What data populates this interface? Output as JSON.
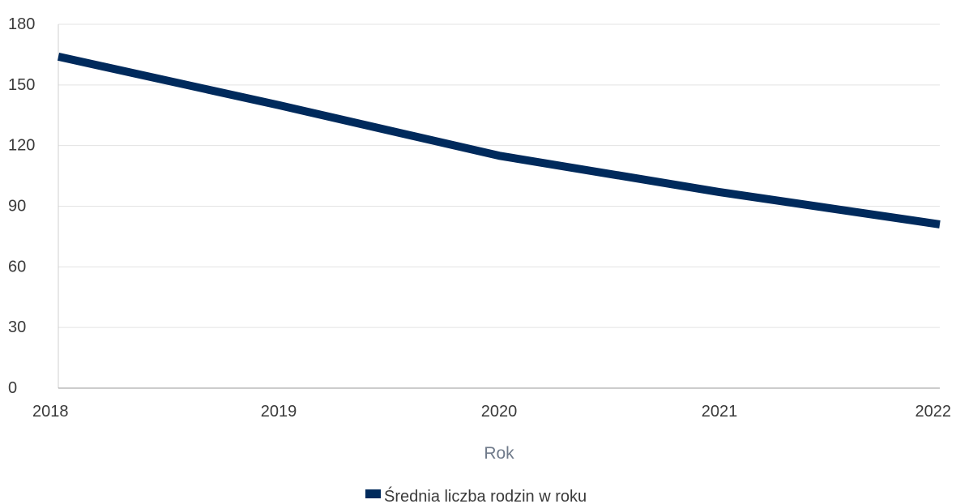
{
  "chart_data": {
    "type": "line",
    "x": [
      "2018",
      "2019",
      "2020",
      "2021",
      "2022"
    ],
    "series": [
      {
        "name": "Średnia liczba rodzin w roku",
        "values": [
          164,
          140,
          115,
          97,
          81
        ],
        "color": "#002a5c"
      }
    ],
    "xlabel": "Rok",
    "ylabel": "",
    "ylim": [
      0,
      180
    ],
    "yticks": [
      0,
      30,
      60,
      90,
      120,
      150,
      180
    ],
    "grid": true,
    "legend": "bottom-center"
  }
}
